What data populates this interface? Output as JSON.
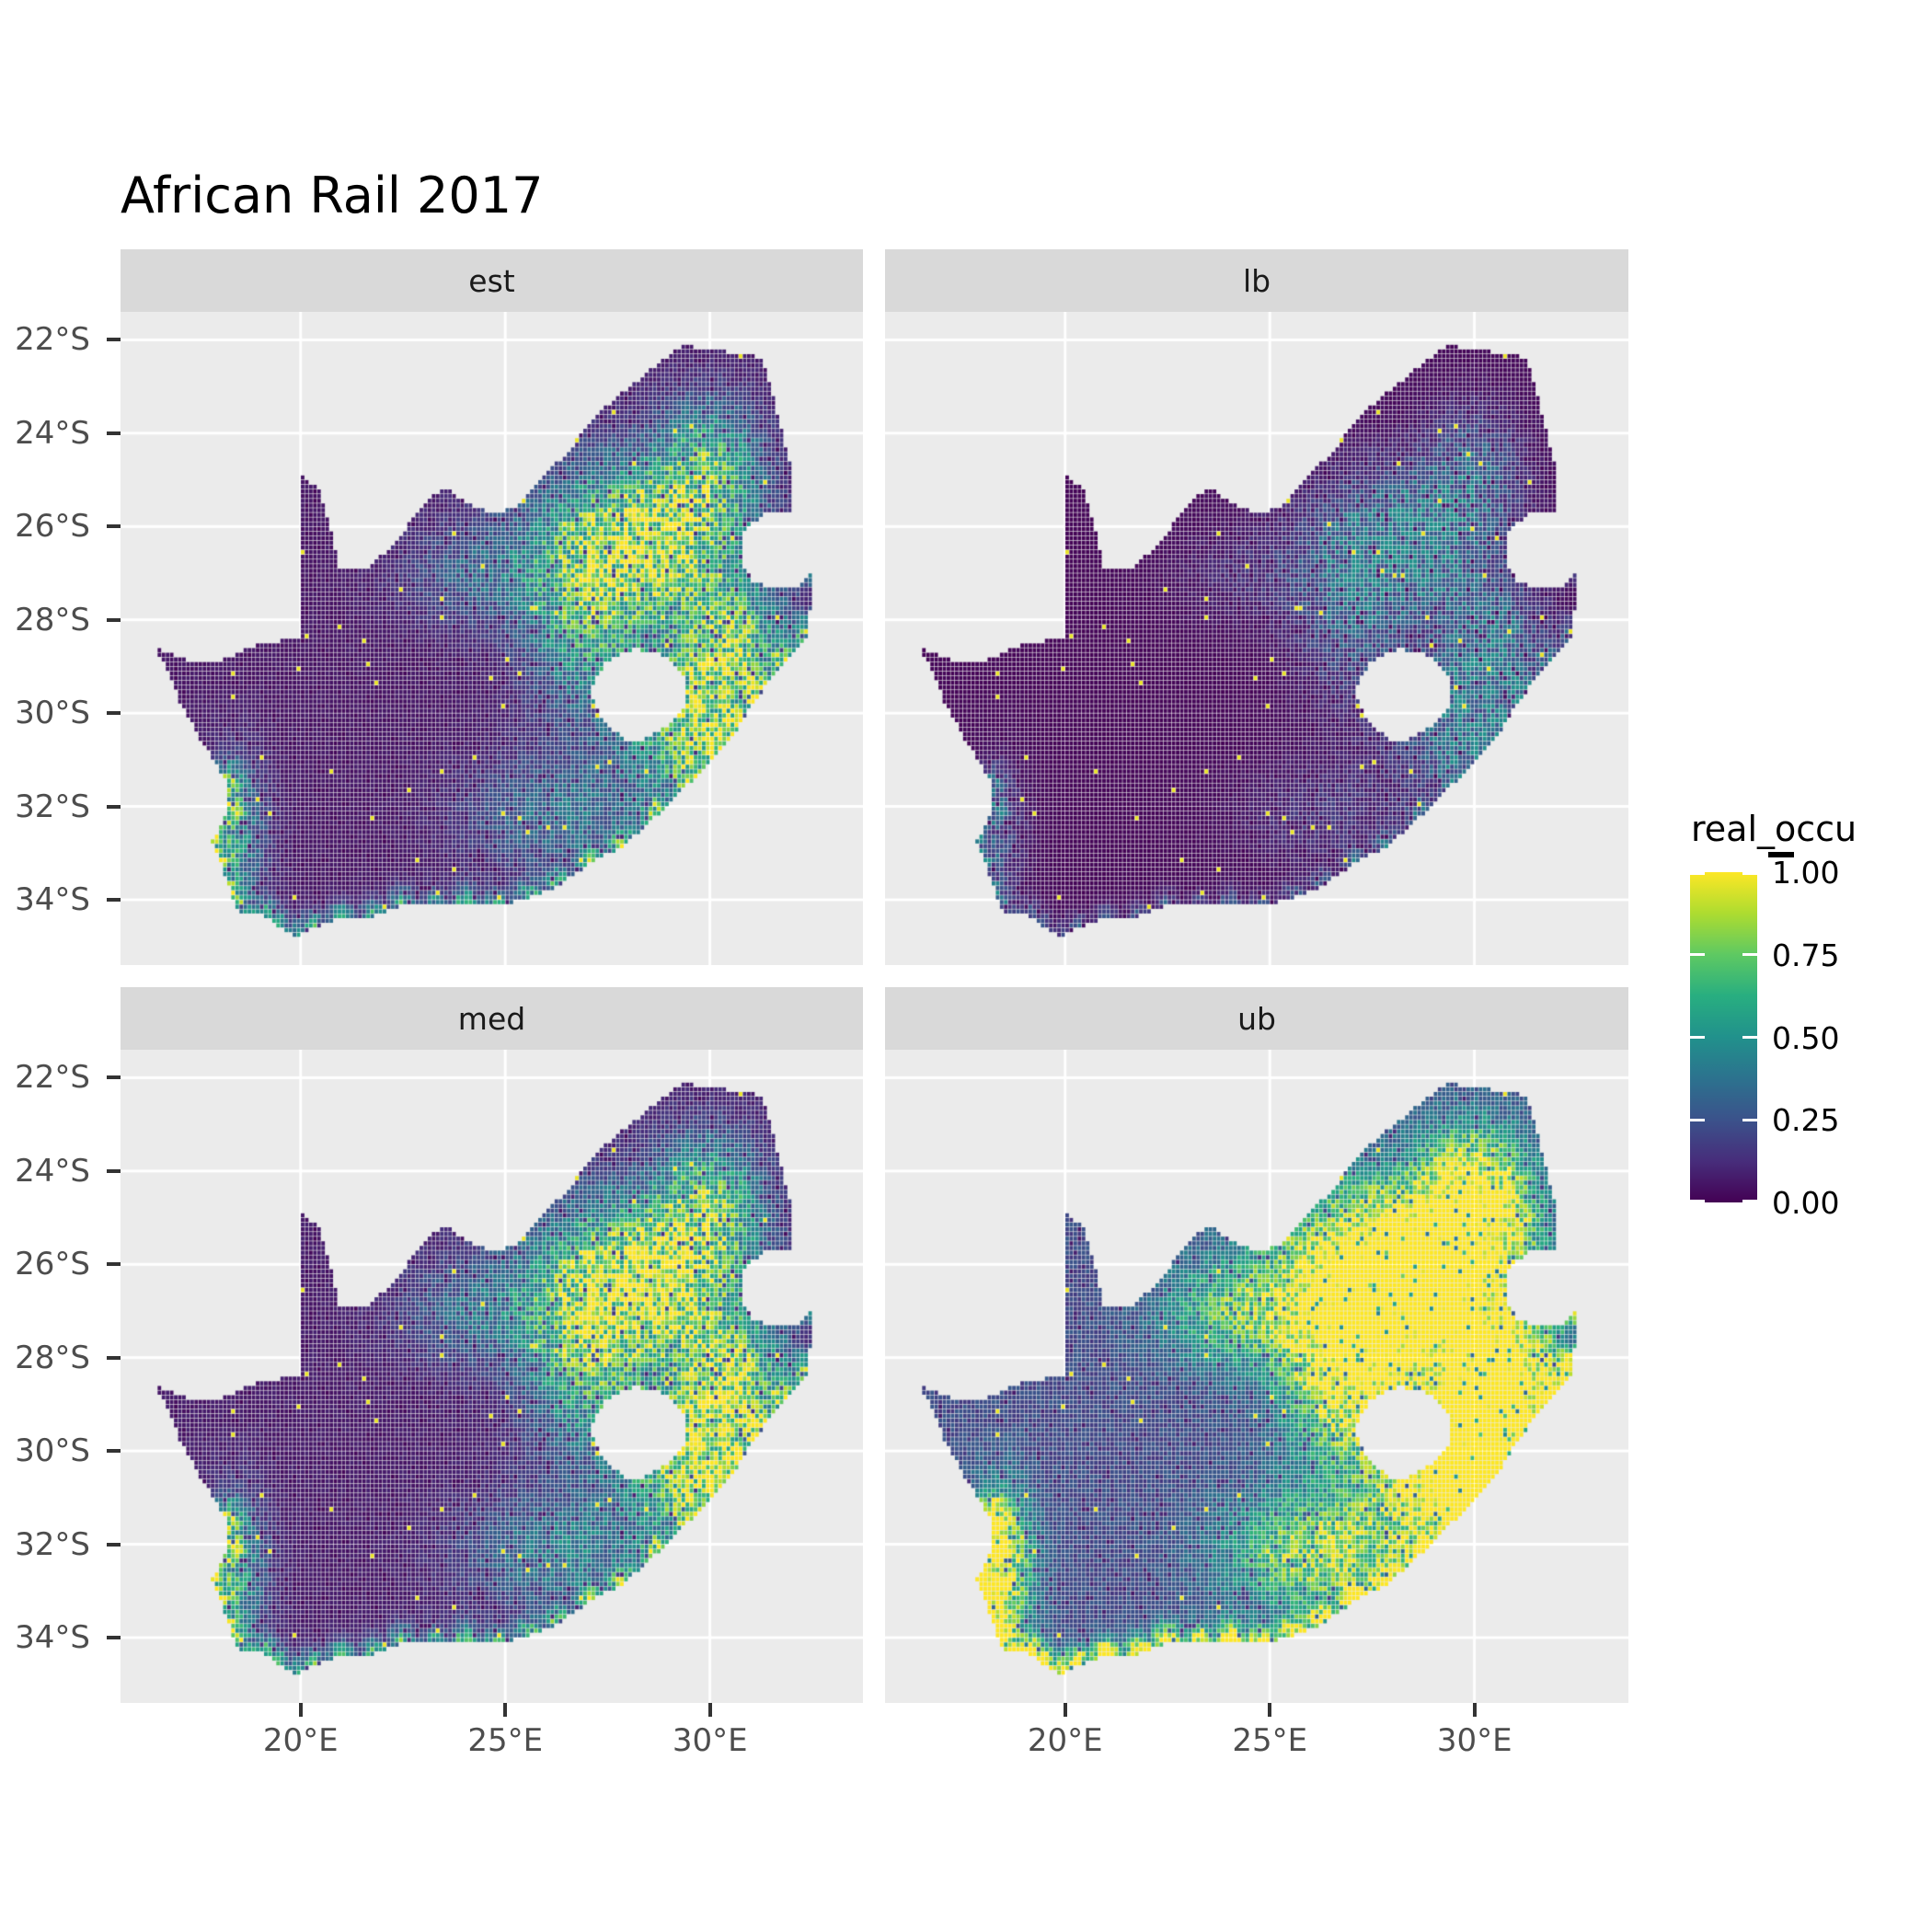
{
  "title": "African Rail 2017",
  "facets": [
    {
      "key": "est",
      "label": "est"
    },
    {
      "key": "lb",
      "label": "lb"
    },
    {
      "key": "med",
      "label": "med"
    },
    {
      "key": "ub",
      "label": "ub"
    }
  ],
  "axes": {
    "y_tick_labels": [
      "22°S",
      "24°S",
      "26°S",
      "28°S",
      "30°S",
      "32°S",
      "34°S"
    ],
    "x_tick_labels": [
      "20°E",
      "25°E",
      "30°E"
    ]
  },
  "legend": {
    "title": "real_occu",
    "labels": [
      "1.00",
      "0.75",
      "0.50",
      "0.25",
      "0.00"
    ]
  },
  "colors": {
    "panel_bg": "#EBEBEB",
    "strip_bg": "#D9D9D9",
    "grid": "#FFFFFF",
    "axis_text": "#4D4D4D",
    "tick_mark": "#333333",
    "title_text": "#000000",
    "strip_text": "#1A1A1A",
    "viridis": [
      "#440154",
      "#472d7b",
      "#3b528b",
      "#2c728e",
      "#21918c",
      "#28ae80",
      "#5ec962",
      "#addc30",
      "#fde725"
    ]
  },
  "chart_data": {
    "type": "heatmap",
    "subtype": "faceted raster occupancy map of South Africa",
    "title": "African Rail 2017",
    "variable": "real_occu",
    "facets": [
      "est",
      "lb",
      "med",
      "ub"
    ],
    "scale": {
      "domain": [
        0,
        1
      ],
      "ticks": [
        0.0,
        0.25,
        0.5,
        0.75,
        1.0
      ],
      "palette": "viridis",
      "legend_position": "right"
    },
    "extent": {
      "lon": [
        15.6,
        33.74
      ],
      "lat": [
        -35.4,
        -21.4
      ]
    },
    "x_tick_values": [
      20,
      25,
      30
    ],
    "y_tick_values": [
      -22,
      -24,
      -26,
      -28,
      -30,
      -32,
      -34
    ],
    "grid": true,
    "resolution": 0.1,
    "base": 0.05,
    "outline": [
      [
        16.45,
        28.6
      ],
      [
        17.2,
        28.85
      ],
      [
        18.1,
        28.85
      ],
      [
        18.9,
        28.55
      ],
      [
        19.5,
        28.45
      ],
      [
        19.98,
        28.4
      ],
      [
        19.98,
        24.85
      ],
      [
        20.45,
        25.2
      ],
      [
        20.75,
        26.1
      ],
      [
        20.95,
        26.85
      ],
      [
        21.7,
        26.85
      ],
      [
        22.4,
        26.25
      ],
      [
        23.0,
        25.5
      ],
      [
        23.5,
        25.15
      ],
      [
        24.0,
        25.45
      ],
      [
        24.6,
        25.7
      ],
      [
        25.3,
        25.6
      ],
      [
        25.9,
        24.9
      ],
      [
        26.5,
        24.45
      ],
      [
        27.1,
        23.7
      ],
      [
        27.9,
        23.1
      ],
      [
        28.6,
        22.6
      ],
      [
        29.35,
        22.12
      ],
      [
        30.0,
        22.2
      ],
      [
        30.9,
        22.3
      ],
      [
        31.3,
        22.4
      ],
      [
        31.55,
        23.2
      ],
      [
        31.75,
        23.9
      ],
      [
        31.95,
        24.6
      ],
      [
        32.02,
        25.3
      ],
      [
        32.05,
        25.68
      ],
      [
        31.35,
        25.72
      ],
      [
        30.85,
        26.05
      ],
      [
        30.78,
        26.75
      ],
      [
        31.05,
        27.2
      ],
      [
        31.55,
        27.32
      ],
      [
        32.12,
        27.31
      ],
      [
        32.55,
        26.86
      ],
      [
        32.4,
        28.3
      ],
      [
        31.9,
        28.9
      ],
      [
        31.2,
        29.6
      ],
      [
        30.7,
        30.3
      ],
      [
        30.25,
        30.85
      ],
      [
        29.5,
        31.5
      ],
      [
        28.7,
        32.2
      ],
      [
        27.9,
        32.85
      ],
      [
        27.1,
        33.2
      ],
      [
        26.3,
        33.7
      ],
      [
        25.6,
        33.95
      ],
      [
        24.8,
        34.15
      ],
      [
        24.0,
        34.05
      ],
      [
        23.3,
        34.15
      ],
      [
        22.5,
        34.1
      ],
      [
        21.8,
        34.35
      ],
      [
        21.0,
        34.4
      ],
      [
        20.3,
        34.6
      ],
      [
        19.9,
        34.8
      ],
      [
        19.4,
        34.55
      ],
      [
        19.1,
        34.35
      ],
      [
        18.6,
        34.35
      ],
      [
        18.4,
        34.1
      ],
      [
        18.3,
        33.85
      ],
      [
        18.0,
        33.1
      ],
      [
        17.85,
        32.75
      ],
      [
        18.25,
        32.05
      ],
      [
        18.2,
        31.45
      ],
      [
        17.6,
        30.65
      ],
      [
        17.05,
        29.75
      ],
      [
        16.7,
        29.0
      ]
    ],
    "lesotho": [
      [
        27.05,
        29.55
      ],
      [
        27.45,
        28.9
      ],
      [
        28.15,
        28.62
      ],
      [
        28.95,
        28.78
      ],
      [
        29.45,
        29.35
      ],
      [
        29.35,
        29.95
      ],
      [
        28.85,
        30.35
      ],
      [
        28.1,
        30.65
      ],
      [
        27.4,
        30.2
      ]
    ],
    "coast": [
      [
        32.55,
        26.86
      ],
      [
        32.4,
        28.3
      ],
      [
        31.9,
        28.9
      ],
      [
        31.2,
        29.6
      ],
      [
        30.7,
        30.3
      ],
      [
        30.25,
        30.85
      ],
      [
        29.5,
        31.5
      ],
      [
        28.7,
        32.2
      ],
      [
        27.9,
        32.85
      ],
      [
        27.1,
        33.2
      ],
      [
        26.3,
        33.7
      ],
      [
        25.6,
        33.95
      ],
      [
        24.8,
        34.15
      ],
      [
        24.0,
        34.05
      ],
      [
        23.3,
        34.15
      ],
      [
        22.5,
        34.1
      ],
      [
        21.8,
        34.35
      ],
      [
        21.0,
        34.4
      ],
      [
        20.3,
        34.6
      ],
      [
        19.9,
        34.8
      ],
      [
        19.4,
        34.55
      ],
      [
        19.1,
        34.35
      ],
      [
        18.6,
        34.35
      ],
      [
        18.4,
        34.1
      ],
      [
        18.3,
        33.85
      ],
      [
        18.0,
        33.1
      ],
      [
        17.85,
        32.75
      ],
      [
        18.25,
        32.05
      ],
      [
        18.2,
        31.45
      ]
    ],
    "coast_boost": {
      "amp": 0.5,
      "width": 0.35
    },
    "hotspots": [
      {
        "lon": 28.3,
        "lat": 26.3,
        "slon": 1.7,
        "slat": 1.2,
        "amp": 0.85
      },
      {
        "lon": 30.0,
        "lat": 24.6,
        "slon": 0.9,
        "slat": 1.0,
        "amp": 0.45
      },
      {
        "lon": 29.7,
        "lat": 30.2,
        "slon": 1.2,
        "slat": 1.2,
        "amp": 0.75
      },
      {
        "lon": 30.7,
        "lat": 28.4,
        "slon": 0.9,
        "slat": 0.9,
        "amp": 0.5
      },
      {
        "lon": 26.9,
        "lat": 28.3,
        "slon": 1.0,
        "slat": 1.3,
        "amp": 0.4
      },
      {
        "lon": 24.3,
        "lat": 27.0,
        "slon": 1.3,
        "slat": 0.8,
        "amp": 0.22
      },
      {
        "lon": 26.3,
        "lat": 32.2,
        "slon": 1.6,
        "slat": 0.9,
        "amp": 0.3
      },
      {
        "lon": 18.4,
        "lat": 32.6,
        "slon": 0.55,
        "slat": 1.1,
        "amp": 0.4
      }
    ],
    "facet_transforms": {
      "est": {
        "gain": 1.0,
        "gamma": 1.0
      },
      "lb": {
        "gain": 0.5,
        "gamma": 1.35
      },
      "med": {
        "gain": 1.1,
        "gamma": 0.95
      },
      "ub": {
        "gain": 1.75,
        "gamma": 0.7
      }
    },
    "dots": {
      "base": 0.003,
      "field_weight": 0.012,
      "value": 0.97
    }
  }
}
